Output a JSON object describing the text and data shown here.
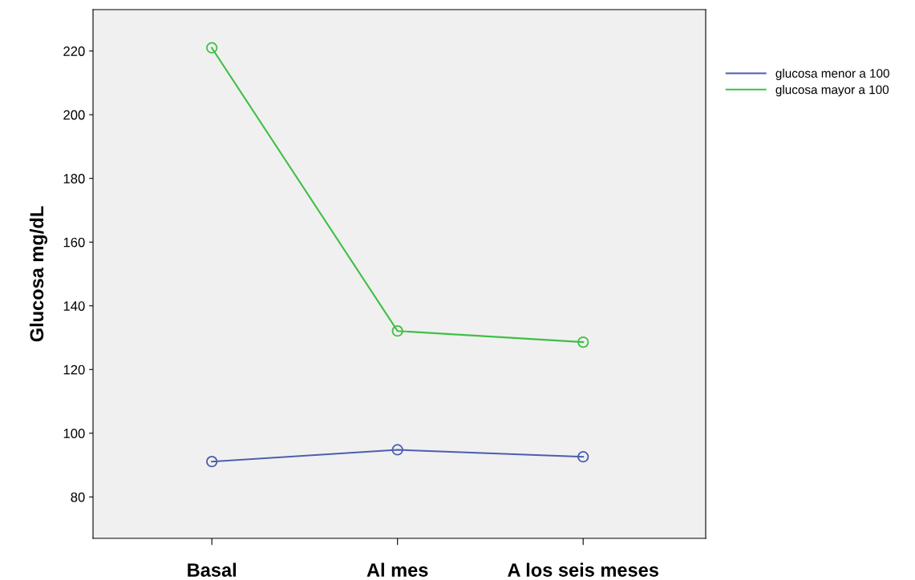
{
  "chart_data": {
    "type": "line",
    "ylabel": "Glucosa mg/dL",
    "categories": [
      "Basal",
      "Al mes",
      "A los seis meses"
    ],
    "series": [
      {
        "name": "glucosa menor a 100",
        "color": "#4a5db0",
        "values": [
          91.1,
          94.8,
          92.6
        ]
      },
      {
        "name": "glucosa mayor a 100",
        "color": "#3fbf45",
        "values": [
          221.0,
          132.1,
          128.6
        ]
      }
    ],
    "ylim": [
      67,
      233
    ],
    "yticks": [
      80,
      100,
      120,
      140,
      160,
      180,
      200,
      220
    ],
    "marker": "circle",
    "line_style": "solid",
    "grid": false,
    "legend": "top right"
  }
}
